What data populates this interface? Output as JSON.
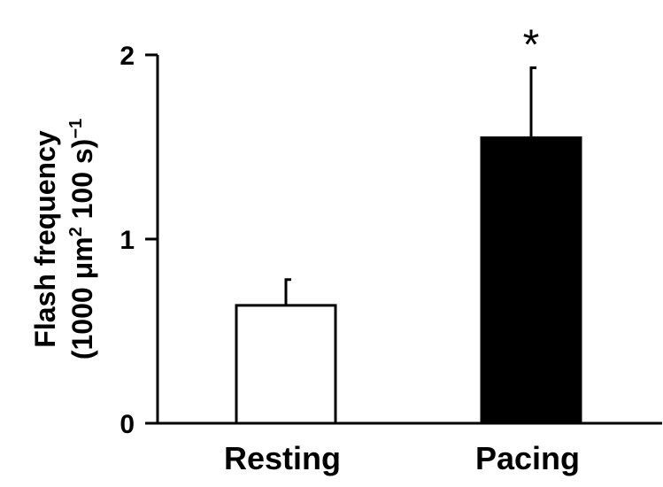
{
  "chart_data": {
    "type": "bar",
    "categories": [
      "Resting",
      "Pacing"
    ],
    "values": [
      0.64,
      1.55
    ],
    "error_upper": [
      0.78,
      1.93
    ],
    "bar_fills": [
      "#ffffff",
      "#000000"
    ],
    "ylabel_line1": "Flash frequency",
    "ylabel_line2_prefix": "(1000 μm",
    "ylabel_line2_sup": "2",
    "ylabel_line2_mid": " 100 s)",
    "ylabel_line2_exp": "−1",
    "ylim": [
      0,
      2
    ],
    "yticks": [
      0,
      1,
      2
    ],
    "ytick_labels": [
      "0",
      "1",
      "2"
    ],
    "annotations": [
      {
        "category": "Pacing",
        "text": "*"
      }
    ],
    "grid": false,
    "legend": "none"
  }
}
